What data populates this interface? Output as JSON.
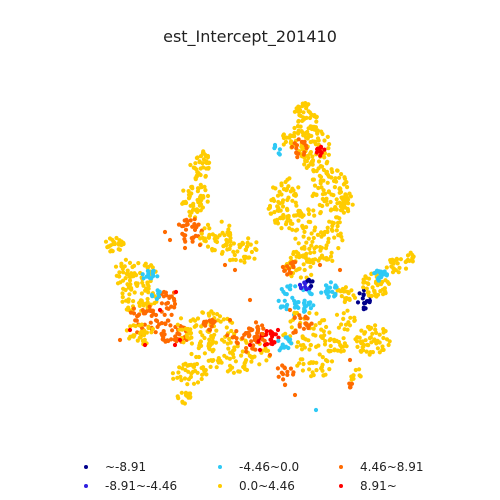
{
  "title": "est_Intercept_201410",
  "legend": [
    {
      "label": "~-8.91",
      "color": "#00008b"
    },
    {
      "label": "-8.91~-4.46",
      "color": "#2f1fe0"
    },
    {
      "label": "-4.46~0.0",
      "color": "#2ec9f5"
    },
    {
      "label": "0.0~4.46",
      "color": "#ffcc00"
    },
    {
      "label": "4.46~8.91",
      "color": "#ff6a00"
    },
    {
      "label": "8.91~",
      "color": "#ff0000"
    }
  ]
}
